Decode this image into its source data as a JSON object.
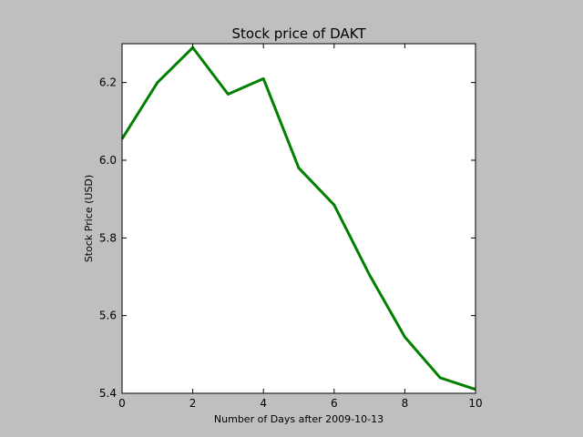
{
  "chart_data": {
    "type": "line",
    "title": "Stock price of DAKT",
    "xlabel": "Number of Days after 2009-10-13",
    "ylabel": "Stock Price (USD)",
    "xlim": [
      0,
      10
    ],
    "ylim": [
      5.4,
      6.3
    ],
    "x_ticks": [
      0,
      2,
      4,
      6,
      8,
      10
    ],
    "y_ticks": [
      5.4,
      5.6,
      5.8,
      6.0,
      6.2
    ],
    "x_tick_labels": [
      "0",
      "2",
      "4",
      "6",
      "8",
      "10"
    ],
    "y_tick_labels": [
      "5.4",
      "5.6",
      "5.8",
      "6.0",
      "6.2"
    ],
    "grid": false,
    "series": [
      {
        "color": "#008000",
        "x": [
          0,
          1,
          2,
          3,
          4,
          5,
          6,
          7,
          8,
          9,
          10
        ],
        "values": [
          6.055,
          6.2,
          6.29,
          6.17,
          6.21,
          5.98,
          5.885,
          5.705,
          5.545,
          5.44,
          5.41
        ]
      }
    ],
    "background_color": "#bfbfbf",
    "plot_background_color": "#ffffff"
  }
}
